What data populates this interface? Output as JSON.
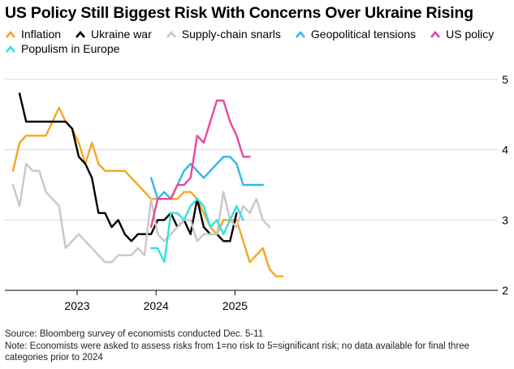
{
  "chart_data": {
    "type": "line",
    "title": "US Policy Still Biggest Risk With Concerns Over Ukraine Rising",
    "xlabel": "",
    "ylabel": "",
    "ylim": [
      2,
      5
    ],
    "yticks": [
      2,
      3,
      4,
      5
    ],
    "xtick_labels": [
      "2023",
      "2024",
      "2025"
    ],
    "x": [
      "2022-03",
      "2022-04",
      "2022-05",
      "2022-06",
      "2022-07",
      "2022-08",
      "2022-09",
      "2022-10",
      "2022-11",
      "2022-12",
      "2023-01",
      "2023-02",
      "2023-03",
      "2023-04",
      "2023-05",
      "2023-06",
      "2023-07",
      "2023-08",
      "2023-09",
      "2023-10",
      "2023-11",
      "2023-12",
      "2024-01",
      "2024-02",
      "2024-03",
      "2024-04",
      "2024-05",
      "2024-06",
      "2024-07",
      "2024-08",
      "2024-09",
      "2024-10",
      "2024-11",
      "2024-12",
      "2025-01",
      "2025-02",
      "2025-03",
      "2025-04",
      "2025-05",
      "2025-06",
      "2025-07",
      "2025-08",
      "2025-09",
      "2025-10",
      "2025-11",
      "2025-12"
    ],
    "series": [
      {
        "name": "Inflation",
        "color": "#f5a623",
        "values": [
          3.7,
          4.1,
          4.2,
          4.2,
          4.2,
          4.2,
          4.4,
          4.6,
          4.4,
          4.3,
          4.1,
          3.8,
          4.1,
          3.8,
          3.7,
          3.7,
          3.7,
          3.7,
          3.6,
          3.5,
          3.4,
          3.3,
          3.3,
          3.3,
          3.3,
          3.3,
          3.4,
          3.4,
          3.3,
          3.1,
          2.9,
          2.8,
          3.0,
          3.0,
          3.0,
          2.7,
          2.4,
          2.5,
          2.6,
          2.3,
          2.2,
          2.2,
          null,
          null,
          null,
          null
        ]
      },
      {
        "name": "Ukraine war",
        "color": "#000000",
        "values": [
          null,
          4.8,
          4.4,
          4.4,
          4.4,
          4.4,
          4.4,
          4.4,
          4.4,
          4.3,
          3.9,
          3.8,
          3.6,
          3.1,
          3.1,
          2.9,
          3.0,
          2.8,
          2.7,
          2.8,
          2.8,
          2.8,
          3.0,
          3.0,
          3.1,
          2.9,
          3.0,
          2.8,
          3.3,
          2.9,
          2.8,
          2.8,
          2.7,
          2.7,
          3.1,
          null,
          null,
          null,
          null,
          null,
          null,
          null,
          null,
          null,
          null,
          null
        ]
      },
      {
        "name": "Supply-chain snarls",
        "color": "#c8c8c8",
        "values": [
          3.5,
          3.2,
          3.8,
          3.7,
          3.7,
          3.4,
          3.3,
          3.2,
          2.6,
          2.7,
          2.8,
          2.7,
          2.6,
          2.5,
          2.4,
          2.4,
          2.5,
          2.5,
          2.5,
          2.6,
          2.5,
          3.3,
          2.8,
          2.7,
          2.8,
          2.9,
          3.0,
          3.0,
          2.7,
          2.8,
          2.8,
          2.8,
          3.4,
          3.0,
          2.9,
          3.2,
          3.1,
          3.3,
          3.0,
          2.9,
          null,
          null,
          null,
          null,
          null,
          null
        ]
      },
      {
        "name": "Geopolitical tensions",
        "color": "#2fb7f0",
        "values": [
          null,
          null,
          null,
          null,
          null,
          null,
          null,
          null,
          null,
          null,
          null,
          null,
          null,
          null,
          null,
          null,
          null,
          null,
          null,
          null,
          null,
          3.6,
          3.3,
          3.4,
          3.3,
          3.5,
          3.7,
          3.8,
          3.7,
          3.6,
          3.7,
          3.8,
          3.9,
          3.9,
          3.8,
          3.5,
          3.5,
          3.5,
          3.5,
          null,
          null,
          null,
          null,
          null,
          null,
          null
        ]
      },
      {
        "name": "US policy",
        "color": "#e8479d",
        "values": [
          null,
          null,
          null,
          null,
          null,
          null,
          null,
          null,
          null,
          null,
          null,
          null,
          null,
          null,
          null,
          null,
          null,
          null,
          null,
          null,
          null,
          2.9,
          3.3,
          3.3,
          3.3,
          3.5,
          3.5,
          3.6,
          4.2,
          4.1,
          4.4,
          4.7,
          4.7,
          4.4,
          4.2,
          3.9,
          3.9,
          null,
          null,
          null,
          null,
          null,
          null,
          null,
          null,
          null
        ]
      },
      {
        "name": "Populism in Europe",
        "color": "#33e0e0",
        "values": [
          null,
          null,
          null,
          null,
          null,
          null,
          null,
          null,
          null,
          null,
          null,
          null,
          null,
          null,
          null,
          null,
          null,
          null,
          null,
          null,
          null,
          2.6,
          2.6,
          2.4,
          3.1,
          3.1,
          3.0,
          3.2,
          3.3,
          3.2,
          2.9,
          3.0,
          2.8,
          3.0,
          3.2,
          3.0,
          null,
          null,
          null,
          null,
          null,
          null,
          null,
          null,
          null,
          null
        ]
      }
    ]
  },
  "legend": {
    "row1": [
      "Inflation",
      "Ukraine war",
      "Supply-chain snarls",
      "Geopolitical tensions",
      "US policy"
    ],
    "row2": [
      "Populism in Europe"
    ]
  },
  "footnote": {
    "source": "Source: Bloomberg survey of economists conducted Dec. 5-11",
    "note": "Note: Economists were asked to assess risks from 1=no risk to 5=significant risk; no data available for final three categories prior to 2024"
  }
}
